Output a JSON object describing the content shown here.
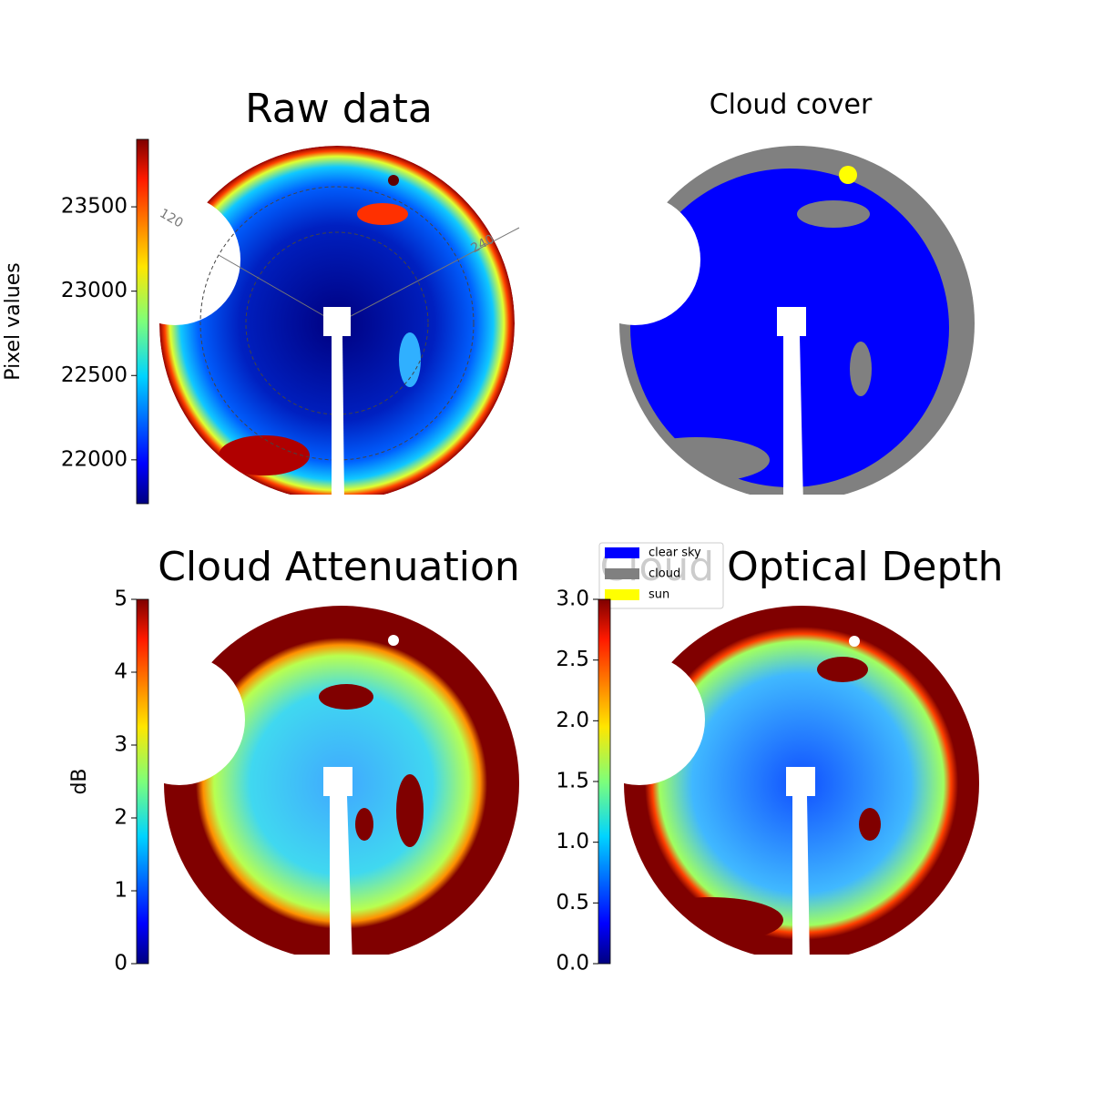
{
  "panels": [
    {
      "title": "Raw data",
      "colorbar": {
        "label": "Pixel values",
        "lim": [
          21740,
          23900
        ],
        "ticks": [
          22000,
          22500,
          23000,
          23500
        ]
      },
      "azimuth_labels": [
        "120",
        "240"
      ]
    },
    {
      "title": "Cloud cover",
      "legend": [
        {
          "name": "clear sky",
          "color": "#0000ff"
        },
        {
          "name": "cloud",
          "color": "#808080"
        },
        {
          "name": "sun",
          "color": "#ffff00"
        }
      ]
    },
    {
      "title": "Cloud Attenuation",
      "colorbar": {
        "label": "dB",
        "lim": [
          0,
          5
        ],
        "ticks": [
          0,
          1,
          2,
          3,
          4,
          5
        ]
      }
    },
    {
      "title": "Cloud Optical Depth",
      "colorbar": {
        "lim": [
          0,
          3
        ],
        "ticks": [
          {
            "value": 0,
            "label": "0.0"
          },
          0.5,
          {
            "value": 1,
            "label": "1.0"
          },
          1.5,
          {
            "value": 2,
            "label": "2.0"
          },
          2.5,
          {
            "value": 3,
            "label": "3.0"
          }
        ]
      }
    }
  ]
}
